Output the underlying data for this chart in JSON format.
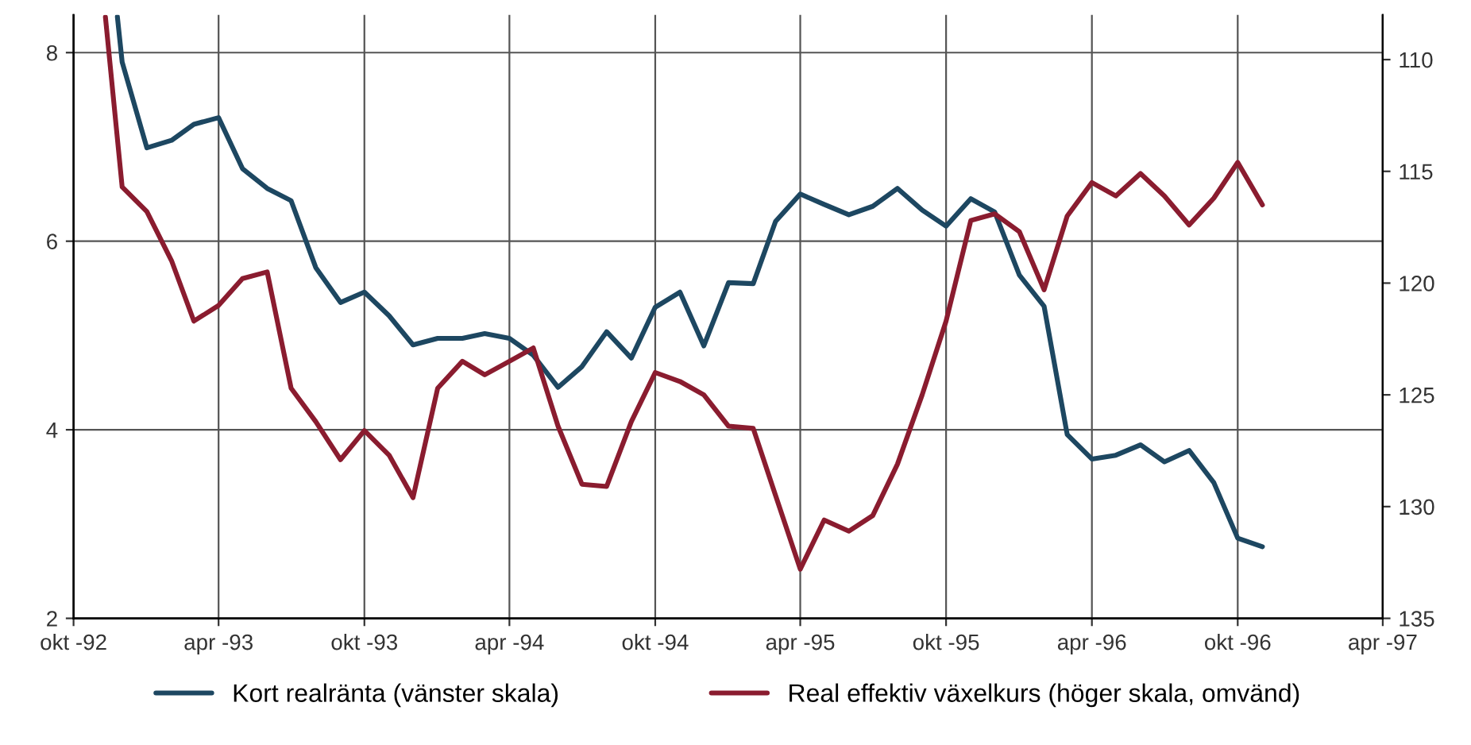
{
  "chart_data": {
    "type": "line",
    "xlim": [
      "1992-10",
      "1997-04"
    ],
    "xticks": [
      {
        "value": "1992-10",
        "label": "okt -92"
      },
      {
        "value": "1993-04",
        "label": "apr -93"
      },
      {
        "value": "1993-10",
        "label": "okt -93"
      },
      {
        "value": "1994-04",
        "label": "apr -94"
      },
      {
        "value": "1994-10",
        "label": "okt -94"
      },
      {
        "value": "1995-04",
        "label": "apr -95"
      },
      {
        "value": "1995-10",
        "label": "okt -95"
      },
      {
        "value": "1996-04",
        "label": "apr -96"
      },
      {
        "value": "1996-10",
        "label": "okt -96"
      },
      {
        "value": "1997-04",
        "label": "apr -97"
      }
    ],
    "ylim": [
      2,
      8.4
    ],
    "yticks": [
      2,
      4,
      6,
      8
    ],
    "y2lim": [
      135,
      108
    ],
    "y2ticks": [
      110,
      115,
      120,
      125,
      130,
      135
    ],
    "grid": true,
    "legend": "bottom",
    "line_style": "solid",
    "series": [
      {
        "name": "Kort realränta (vänster skala)",
        "color": "#1d4761",
        "x": [
          "1992-11-25",
          "1992-12",
          "1993-01",
          "1993-02",
          "1993-03",
          "1993-04",
          "1993-05",
          "1993-06",
          "1993-07",
          "1993-08",
          "1993-09",
          "1993-10",
          "1993-11",
          "1993-12",
          "1994-01",
          "1994-02",
          "1994-03",
          "1994-04",
          "1994-05",
          "1994-06",
          "1994-07",
          "1994-08",
          "1994-09",
          "1994-10",
          "1994-11",
          "1994-12",
          "1995-01",
          "1995-02",
          "1995-03",
          "1995-04",
          "1995-05",
          "1995-06",
          "1995-07",
          "1995-08",
          "1995-09",
          "1995-10",
          "1995-11",
          "1995-12",
          "1996-01",
          "1996-02",
          "1996-03",
          "1996-04",
          "1996-05",
          "1996-06",
          "1996-07",
          "1996-08",
          "1996-09",
          "1996-10",
          "1996-11"
        ],
        "values": [
          8.38,
          7.9,
          6.99,
          7.07,
          7.24,
          7.31,
          6.77,
          6.56,
          6.43,
          5.72,
          5.35,
          5.46,
          5.21,
          4.9,
          4.97,
          4.97,
          5.02,
          4.97,
          4.79,
          4.45,
          4.67,
          5.04,
          4.76,
          5.3,
          5.46,
          4.89,
          5.56,
          5.55,
          6.21,
          6.5,
          6.39,
          6.28,
          6.37,
          6.56,
          6.33,
          6.16,
          6.45,
          6.31,
          5.64,
          5.31,
          3.95,
          3.69,
          3.73,
          3.84,
          3.66,
          3.78,
          3.44,
          2.85,
          2.76
        ]
      },
      {
        "name": "Real effektiv växelkurs (höger skala, omvänd)",
        "color": "#8a1c2f",
        "axis": "y2",
        "x": [
          "1992-11-10",
          "1992-12",
          "1993-01",
          "1993-02",
          "1993-03",
          "1993-04",
          "1993-05",
          "1993-06",
          "1993-07",
          "1993-08",
          "1993-09",
          "1993-10",
          "1993-11",
          "1993-12",
          "1994-01",
          "1994-02",
          "1994-03",
          "1994-04",
          "1994-05",
          "1994-06",
          "1994-07",
          "1994-08",
          "1994-09",
          "1994-10",
          "1994-11",
          "1994-12",
          "1995-01",
          "1995-02",
          "1995-03",
          "1995-04",
          "1995-05",
          "1995-06",
          "1995-07",
          "1995-08",
          "1995-09",
          "1995-10",
          "1995-11",
          "1995-12",
          "1996-01",
          "1996-02",
          "1996-03",
          "1996-04",
          "1996-05",
          "1996-06",
          "1996-07",
          "1996-08",
          "1996-09",
          "1996-10",
          "1996-11"
        ],
        "values": [
          108.1,
          115.7,
          116.8,
          119.0,
          121.7,
          121.0,
          119.8,
          119.5,
          124.7,
          126.2,
          127.9,
          126.6,
          127.7,
          129.6,
          124.7,
          123.5,
          124.1,
          123.5,
          122.9,
          126.4,
          129.0,
          129.1,
          126.2,
          124.0,
          124.4,
          125.0,
          126.4,
          126.5,
          129.5,
          132.8,
          130.6,
          131.1,
          130.4,
          128.1,
          125.0,
          121.7,
          117.2,
          116.9,
          117.7,
          120.3,
          117.0,
          115.5,
          116.1,
          115.1,
          116.1,
          117.4,
          116.2,
          114.6,
          116.5
        ]
      }
    ]
  }
}
